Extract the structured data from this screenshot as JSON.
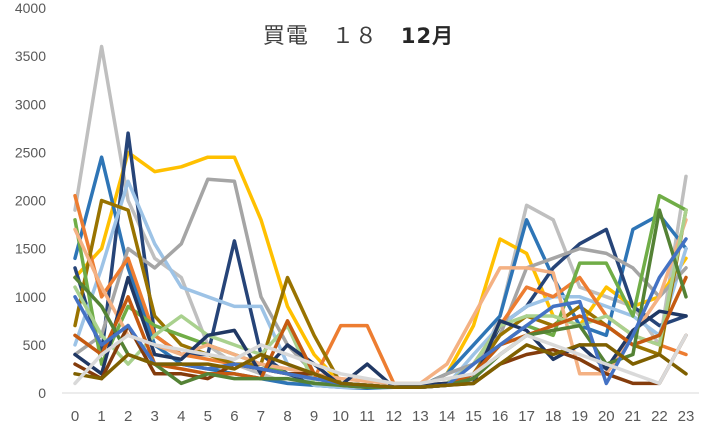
{
  "title_parts": [
    "買電　１８　",
    "12月"
  ],
  "chart_data": {
    "type": "line",
    "title": "買電　１８　12月",
    "xlabel": "",
    "ylabel": "",
    "ylim": [
      0,
      4000
    ],
    "yticks": [
      0,
      500,
      1000,
      1500,
      2000,
      2500,
      3000,
      3500,
      4000
    ],
    "categories": [
      "0",
      "1",
      "2",
      "3",
      "4",
      "5",
      "6",
      "7",
      "8",
      "9",
      "10",
      "11",
      "12",
      "13",
      "14",
      "15",
      "16",
      "17",
      "18",
      "19",
      "20",
      "21",
      "22",
      "23"
    ],
    "grid": false,
    "legend": "none",
    "series": [
      {
        "color": "#bfbfbf",
        "values": [
          1900,
          3600,
          2000,
          1400,
          1200,
          500,
          300,
          200,
          100,
          100,
          80,
          60,
          60,
          70,
          100,
          150,
          800,
          1950,
          1800,
          1100,
          1000,
          900,
          500,
          2250
        ]
      },
      {
        "color": "#ffc000",
        "values": [
          1200,
          1500,
          2500,
          2300,
          2350,
          2450,
          2450,
          1800,
          900,
          400,
          100,
          80,
          60,
          70,
          200,
          700,
          1600,
          1450,
          800,
          700,
          1100,
          900,
          1000,
          1400
        ]
      },
      {
        "color": "#2e75b6",
        "values": [
          1400,
          2450,
          1300,
          500,
          300,
          250,
          200,
          150,
          100,
          80,
          60,
          50,
          60,
          70,
          200,
          500,
          800,
          1800,
          1200,
          700,
          600,
          1700,
          1850,
          1500
        ]
      },
      {
        "color": "#264478",
        "values": [
          1300,
          400,
          2700,
          600,
          400,
          400,
          1580,
          400,
          200,
          100,
          80,
          80,
          60,
          80,
          100,
          150,
          700,
          900,
          1300,
          1550,
          1700,
          900,
          700,
          800
        ]
      },
      {
        "color": "#9dc3e6",
        "values": [
          500,
          1300,
          2200,
          1550,
          1100,
          1000,
          900,
          900,
          300,
          80,
          60,
          60,
          60,
          60,
          80,
          400,
          700,
          900,
          1000,
          1000,
          900,
          800,
          600,
          1500
        ]
      },
      {
        "color": "#a5a5a5",
        "values": [
          400,
          600,
          1500,
          1300,
          1550,
          2220,
          2200,
          1000,
          500,
          200,
          100,
          80,
          60,
          60,
          200,
          300,
          600,
          1300,
          1400,
          1500,
          1450,
          1300,
          1000,
          1300
        ]
      },
      {
        "color": "#ed7d31",
        "values": [
          2050,
          1000,
          1400,
          600,
          400,
          350,
          300,
          250,
          200,
          150,
          700,
          700,
          100,
          80,
          100,
          300,
          700,
          1100,
          1000,
          1200,
          800,
          600,
          500,
          400
        ]
      },
      {
        "color": "#997300",
        "values": [
          700,
          2000,
          1900,
          800,
          500,
          400,
          300,
          300,
          1200,
          600,
          100,
          80,
          60,
          60,
          80,
          200,
          600,
          800,
          700,
          900,
          700,
          500,
          400,
          1900
        ]
      },
      {
        "color": "#70ad47",
        "values": [
          1800,
          300,
          900,
          700,
          600,
          500,
          400,
          300,
          200,
          150,
          100,
          80,
          60,
          60,
          100,
          200,
          500,
          700,
          600,
          1350,
          1350,
          800,
          2050,
          1900
        ]
      },
      {
        "color": "#f4b183",
        "values": [
          1700,
          1100,
          600,
          500,
          400,
          500,
          400,
          300,
          250,
          200,
          150,
          120,
          100,
          100,
          300,
          800,
          1300,
          1300,
          1250,
          200,
          200,
          600,
          1000,
          1800
        ]
      },
      {
        "color": "#a9d18e",
        "values": [
          1100,
          600,
          300,
          600,
          800,
          600,
          500,
          400,
          700,
          100,
          80,
          60,
          60,
          60,
          100,
          300,
          700,
          800,
          800,
          700,
          800,
          600,
          500,
          1900
        ]
      },
      {
        "color": "#203864",
        "values": [
          400,
          200,
          1200,
          400,
          350,
          600,
          650,
          200,
          500,
          300,
          80,
          300,
          60,
          80,
          100,
          100,
          750,
          650,
          350,
          500,
          250,
          650,
          850,
          800
        ]
      },
      {
        "color": "#843c0c",
        "values": [
          300,
          150,
          700,
          200,
          200,
          150,
          300,
          250,
          200,
          200,
          80,
          60,
          60,
          60,
          80,
          100,
          300,
          400,
          450,
          350,
          200,
          100,
          100,
          600
        ]
      },
      {
        "color": "#c55a11",
        "values": [
          600,
          400,
          1000,
          300,
          250,
          200,
          200,
          150,
          750,
          200,
          100,
          80,
          60,
          60,
          80,
          200,
          500,
          600,
          700,
          800,
          700,
          500,
          600,
          1200
        ]
      },
      {
        "color": "#548235",
        "values": [
          1200,
          900,
          400,
          300,
          100,
          200,
          150,
          150,
          150,
          100,
          80,
          60,
          60,
          60,
          80,
          150,
          400,
          600,
          650,
          700,
          300,
          400,
          1900,
          1000
        ]
      },
      {
        "color": "#4472c4",
        "values": [
          1000,
          500,
          700,
          300,
          300,
          250,
          300,
          250,
          200,
          150,
          100,
          80,
          60,
          60,
          80,
          300,
          500,
          700,
          900,
          950,
          100,
          600,
          1200,
          1600
        ]
      },
      {
        "color": "#7f6000",
        "values": [
          200,
          150,
          400,
          300,
          300,
          300,
          250,
          400,
          300,
          200,
          100,
          80,
          60,
          60,
          80,
          100,
          300,
          500,
          400,
          500,
          500,
          300,
          400,
          200
        ]
      },
      {
        "color": "#d9d9d9",
        "values": [
          100,
          400,
          600,
          500,
          450,
          400,
          350,
          500,
          400,
          300,
          200,
          150,
          100,
          100,
          150,
          200,
          400,
          600,
          500,
          400,
          300,
          200,
          100,
          600
        ]
      }
    ]
  }
}
